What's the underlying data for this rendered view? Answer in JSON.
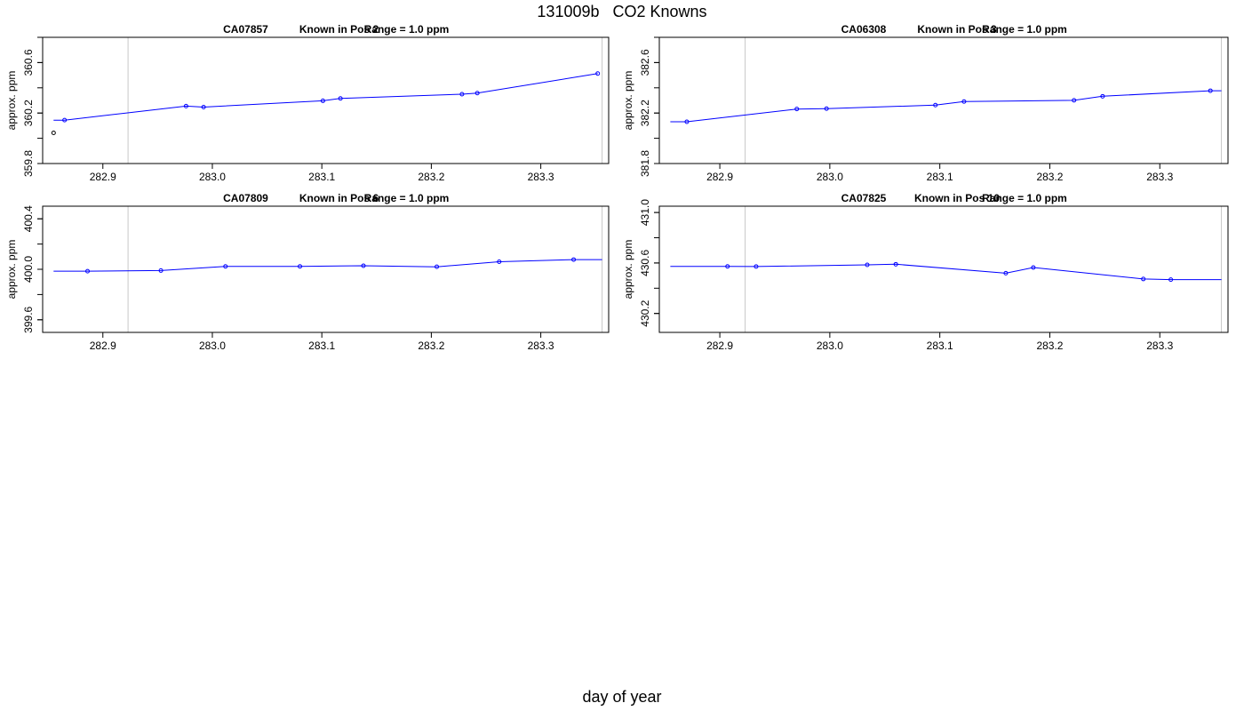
{
  "figure": {
    "title": "131009b   CO2 Knowns",
    "xlabel": "day of year"
  },
  "chart_data": [
    {
      "type": "line",
      "title_parts": [
        "CA07857",
        "Known in Pos 2",
        "Range = 1.0 ppm"
      ],
      "ylabel": "approx. ppm",
      "xlim": [
        282.845,
        283.362
      ],
      "ylim": [
        359.8,
        360.8
      ],
      "xticks": [
        282.9,
        283.0,
        283.1,
        283.2,
        283.3
      ],
      "yticks": [
        359.8,
        360.2,
        360.6
      ],
      "vlines": [
        282.923,
        283.356
      ],
      "series": [
        {
          "color": "#0000ff",
          "x": [
            282.855,
            282.865,
            282.976,
            282.992,
            283.101,
            283.117,
            283.228,
            283.242,
            283.352
          ],
          "y": [
            360.144,
            360.144,
            360.255,
            360.247,
            360.297,
            360.316,
            360.349,
            360.358,
            360.513
          ],
          "markers": [
            false,
            true,
            true,
            true,
            true,
            true,
            true,
            true,
            true
          ]
        }
      ],
      "outliers": [
        {
          "x": 282.855,
          "y": 360.043,
          "color": "#000000"
        }
      ]
    },
    {
      "type": "line",
      "title_parts": [
        "CA06308",
        "Known in Pos 3",
        "Range = 1.0 ppm"
      ],
      "ylabel": "approx. ppm",
      "xlim": [
        282.845,
        283.362
      ],
      "ylim": [
        381.8,
        382.8
      ],
      "xticks": [
        282.9,
        283.0,
        283.1,
        283.2,
        283.3
      ],
      "yticks": [
        381.8,
        382.2,
        382.6
      ],
      "vlines": [
        282.923,
        283.356
      ],
      "series": [
        {
          "color": "#0000ff",
          "x": [
            282.855,
            282.87,
            282.97,
            282.997,
            283.096,
            283.122,
            283.222,
            283.248,
            283.346,
            283.356
          ],
          "y": [
            382.131,
            382.131,
            382.232,
            382.235,
            382.263,
            382.291,
            382.301,
            382.333,
            382.377,
            382.377
          ],
          "markers": [
            false,
            true,
            true,
            true,
            true,
            true,
            true,
            true,
            true,
            false
          ]
        }
      ],
      "outliers": []
    },
    {
      "type": "line",
      "title_parts": [
        "CA07809",
        "Known in Pos 6",
        "Range = 1.0 ppm"
      ],
      "ylabel": "approx. ppm",
      "xlim": [
        282.845,
        283.362
      ],
      "ylim": [
        399.5,
        400.5
      ],
      "xticks": [
        282.9,
        283.0,
        283.1,
        283.2,
        283.3
      ],
      "yticks": [
        399.6,
        400.0,
        400.4
      ],
      "vlines": [
        282.923,
        283.356
      ],
      "series": [
        {
          "color": "#0000ff",
          "x": [
            282.855,
            282.886,
            282.953,
            283.012,
            283.08,
            283.138,
            283.205,
            283.262,
            283.33,
            283.356
          ],
          "y": [
            399.985,
            399.985,
            399.99,
            400.023,
            400.023,
            400.028,
            400.02,
            400.06,
            400.077,
            400.077
          ],
          "markers": [
            false,
            true,
            true,
            true,
            true,
            true,
            true,
            true,
            true,
            false
          ]
        }
      ],
      "outliers": []
    },
    {
      "type": "line",
      "title_parts": [
        "CA07825",
        "Known in Pos 10",
        "Range = 1.0 ppm"
      ],
      "ylabel": "approx. ppm",
      "xlim": [
        282.845,
        283.362
      ],
      "ylim": [
        430.05,
        431.05
      ],
      "xticks": [
        282.9,
        283.0,
        283.1,
        283.2,
        283.3
      ],
      "yticks": [
        430.2,
        430.6,
        431.0
      ],
      "vlines": [
        282.923,
        283.356
      ],
      "series": [
        {
          "color": "#0000ff",
          "x": [
            282.855,
            282.907,
            282.933,
            283.034,
            283.06,
            283.16,
            283.185,
            283.285,
            283.31,
            283.356
          ],
          "y": [
            430.573,
            430.573,
            430.572,
            430.585,
            430.59,
            430.519,
            430.564,
            430.473,
            430.468,
            430.468
          ],
          "markers": [
            false,
            true,
            true,
            true,
            true,
            true,
            true,
            true,
            true,
            false
          ]
        }
      ],
      "outliers": []
    }
  ]
}
